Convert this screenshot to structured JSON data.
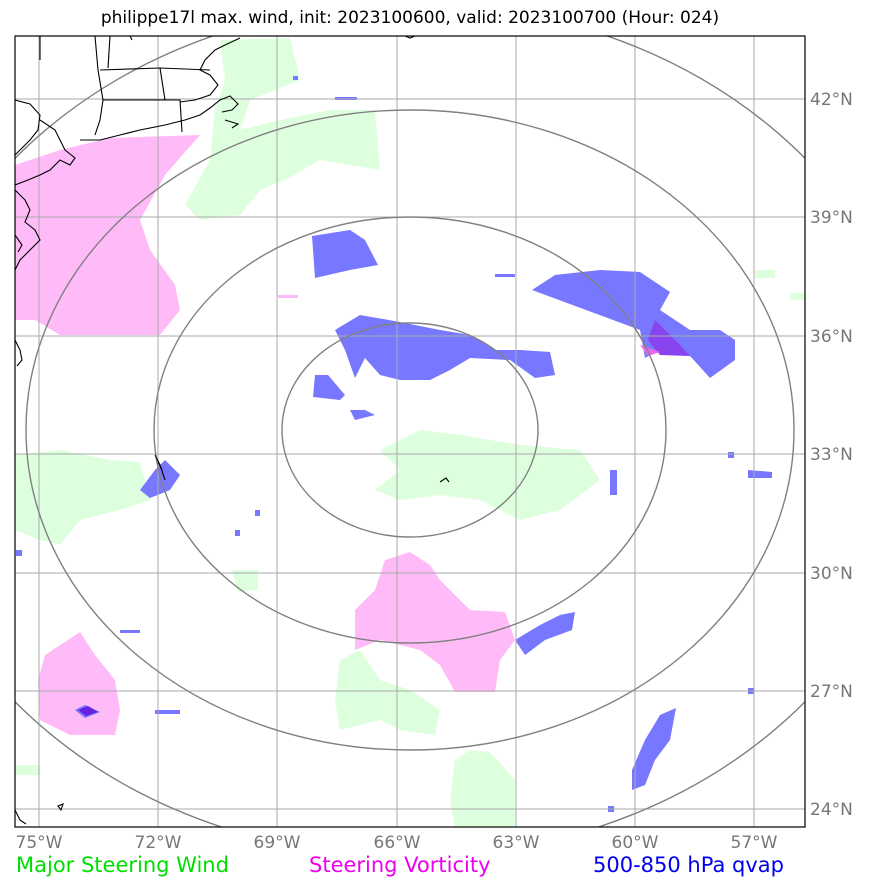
{
  "title": "philippe17l max. wind, init: 2023100600, valid: 2023100700 (Hour: 024)",
  "lon_labels": [
    "75°W",
    "72°W",
    "69°W",
    "66°W",
    "63°W",
    "60°W",
    "57°W"
  ],
  "lat_labels": [
    "42°N",
    "39°N",
    "36°N",
    "33°N",
    "30°N",
    "27°N",
    "24°N"
  ],
  "legend": {
    "wind": "Major Steering Wind",
    "vorticity": "Steering Vorticity",
    "qvap": "500-850 hPa qvap"
  },
  "colors": {
    "wind": "#ddffdd",
    "vorticity": "#ffbbf8",
    "qvap": "#7777ff",
    "overlap": "#8844ee",
    "grid": "#aaaaaa",
    "rings": "#808080",
    "coast": "#000000"
  },
  "storm_center": {
    "lon": -65.8,
    "lat": 33.6
  }
}
